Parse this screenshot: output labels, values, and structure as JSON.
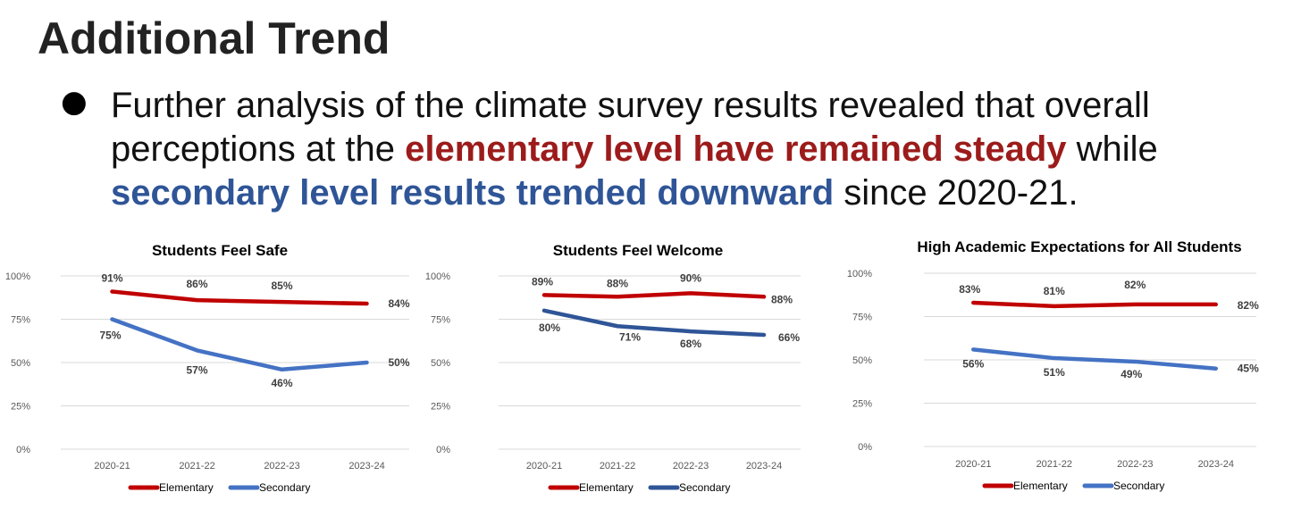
{
  "slide": {
    "title": "Additional Trend",
    "bullet_symbol": "●",
    "bullet_parts": {
      "p1": "Further analysis of the climate survey results revealed that overall perceptions at the ",
      "p2": "elementary level have remained steady",
      "p3": " while ",
      "p4": "secondary level results trended downward",
      "p5": " since 2020-21."
    }
  },
  "colors": {
    "elementary_chart1": "#c00000",
    "secondary_chart1": "#4472c4",
    "elementary_chart2": "#c00000",
    "secondary_chart2": "#2f5597",
    "elementary_chart3": "#c00000",
    "secondary_chart3": "#4472c4",
    "gridline": "#d9d9d9",
    "axis_text": "#595959",
    "label_text": "#404040"
  },
  "chart_data": [
    {
      "type": "line",
      "title": "Students Feel Safe",
      "categories": [
        "2020-21",
        "2021-22",
        "2022-23",
        "2023-24"
      ],
      "ylim": [
        0,
        100
      ],
      "yticks": [
        "0%",
        "25%",
        "50%",
        "75%",
        "100%"
      ],
      "grid": true,
      "legend": "bottom",
      "series": [
        {
          "name": "Elementary",
          "values": [
            91,
            86,
            85,
            84
          ],
          "labels": [
            "91%",
            "86%",
            "85%",
            "84%"
          ]
        },
        {
          "name": "Secondary",
          "values": [
            75,
            57,
            46,
            50
          ],
          "labels": [
            "75%",
            "57%",
            "46%",
            "50%"
          ]
        }
      ]
    },
    {
      "type": "line",
      "title": "Students Feel Welcome",
      "categories": [
        "2020-21",
        "2021-22",
        "2022-23",
        "2023-24"
      ],
      "ylim": [
        0,
        100
      ],
      "yticks": [
        "0%",
        "25%",
        "50%",
        "75%",
        "100%"
      ],
      "grid": true,
      "legend": "bottom",
      "series": [
        {
          "name": "Elementary",
          "values": [
            89,
            88,
            90,
            88
          ],
          "labels": [
            "89%",
            "88%",
            "90%",
            "88%"
          ]
        },
        {
          "name": "Secondary",
          "values": [
            80,
            71,
            68,
            66
          ],
          "labels": [
            "80%",
            "71%",
            "68%",
            "66%"
          ]
        }
      ]
    },
    {
      "type": "line",
      "title": "High Academic Expectations for All Students",
      "categories": [
        "2020-21",
        "2021-22",
        "2022-23",
        "2023-24"
      ],
      "ylim": [
        0,
        100
      ],
      "yticks": [
        "0%",
        "25%",
        "50%",
        "75%",
        "100%"
      ],
      "grid": true,
      "legend": "bottom",
      "series": [
        {
          "name": "Elementary",
          "values": [
            83,
            81,
            82,
            82
          ],
          "labels": [
            "83%",
            "81%",
            "82%",
            "82%"
          ]
        },
        {
          "name": "Secondary",
          "values": [
            56,
            51,
            49,
            45
          ],
          "labels": [
            "56%",
            "51%",
            "49%",
            "45%"
          ]
        }
      ]
    }
  ]
}
